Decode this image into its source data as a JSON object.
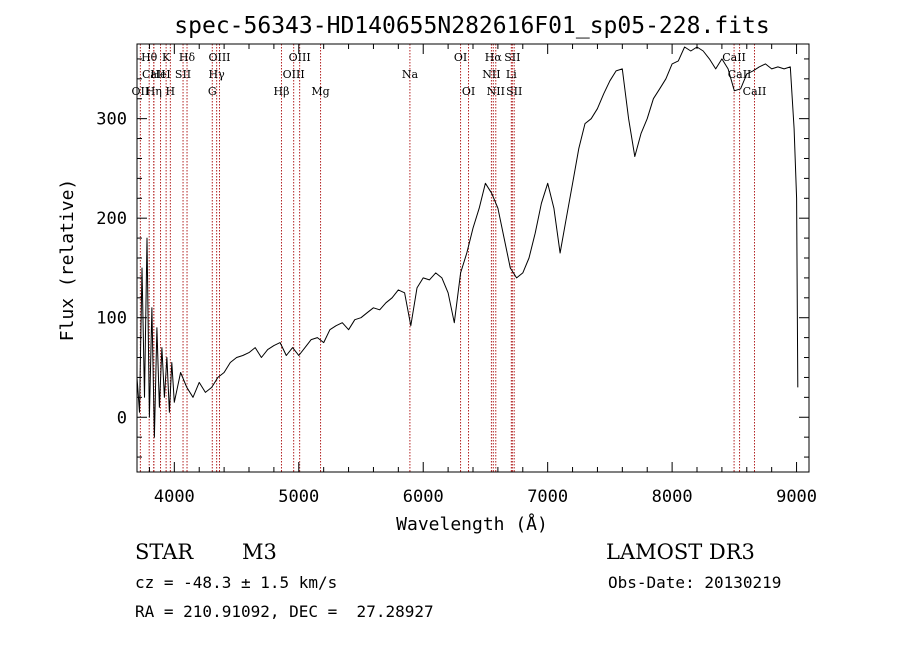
{
  "chart_data": {
    "type": "line",
    "title": "spec-56343-HD140655N282616F01_sp05-228.fits",
    "xlabel": "Wavelength (Å)",
    "ylabel": "Flux (relative)",
    "xlim": [
      3700,
      9100
    ],
    "ylim": [
      -55,
      375
    ],
    "x_ticks": [
      4000,
      5000,
      6000,
      7000,
      8000,
      9000
    ],
    "y_ticks": [
      0,
      100,
      200,
      300
    ],
    "x_minor_step": 200,
    "y_minor_step": 20,
    "grid": false,
    "series": [
      {
        "name": "flux",
        "x": [
          3700,
          3720,
          3740,
          3760,
          3780,
          3800,
          3820,
          3840,
          3860,
          3880,
          3900,
          3920,
          3940,
          3960,
          3980,
          4000,
          4050,
          4100,
          4150,
          4200,
          4250,
          4300,
          4350,
          4400,
          4450,
          4500,
          4550,
          4600,
          4650,
          4700,
          4750,
          4800,
          4850,
          4900,
          4950,
          5000,
          5050,
          5100,
          5150,
          5200,
          5250,
          5300,
          5350,
          5400,
          5450,
          5500,
          5550,
          5600,
          5650,
          5700,
          5750,
          5800,
          5850,
          5900,
          5950,
          6000,
          6050,
          6100,
          6150,
          6200,
          6250,
          6300,
          6350,
          6400,
          6450,
          6500,
          6550,
          6600,
          6650,
          6700,
          6750,
          6800,
          6850,
          6900,
          6950,
          7000,
          7050,
          7100,
          7150,
          7200,
          7250,
          7300,
          7350,
          7400,
          7450,
          7500,
          7550,
          7600,
          7650,
          7700,
          7750,
          7800,
          7850,
          7900,
          7950,
          8000,
          8050,
          8100,
          8150,
          8200,
          8250,
          8300,
          8350,
          8400,
          8450,
          8500,
          8550,
          8600,
          8650,
          8700,
          8750,
          8800,
          8850,
          8900,
          8950,
          8980,
          9000,
          9010
        ],
        "y": [
          40,
          5,
          150,
          20,
          180,
          0,
          110,
          -20,
          90,
          10,
          70,
          20,
          60,
          5,
          55,
          15,
          45,
          30,
          20,
          35,
          25,
          30,
          40,
          45,
          55,
          60,
          62,
          65,
          70,
          60,
          68,
          72,
          75,
          62,
          70,
          62,
          70,
          78,
          80,
          75,
          88,
          92,
          95,
          88,
          98,
          100,
          105,
          110,
          108,
          115,
          120,
          128,
          125,
          92,
          130,
          140,
          138,
          145,
          140,
          125,
          95,
          145,
          165,
          190,
          210,
          235,
          225,
          210,
          180,
          150,
          140,
          145,
          160,
          185,
          215,
          235,
          210,
          165,
          200,
          235,
          270,
          295,
          300,
          310,
          325,
          338,
          348,
          350,
          300,
          262,
          285,
          300,
          320,
          330,
          340,
          355,
          358,
          372,
          368,
          372,
          368,
          360,
          350,
          360,
          350,
          328,
          330,
          345,
          348,
          352,
          355,
          350,
          352,
          350,
          352,
          290,
          220,
          30
        ]
      }
    ],
    "line_markers": [
      {
        "label": "Hθ",
        "wavelength": 3798,
        "tier": 1
      },
      {
        "label": "CaII",
        "wavelength": 3835,
        "tier": 2
      },
      {
        "label": "OII",
        "wavelength": 3727,
        "tier": 3
      },
      {
        "label": "K",
        "wavelength": 3934,
        "tier": 1
      },
      {
        "label": "HeI",
        "wavelength": 3889,
        "tier": 2
      },
      {
        "label": "Hη",
        "wavelength": 3835,
        "tier": 3
      },
      {
        "label": "H",
        "wavelength": 3968,
        "tier": 3
      },
      {
        "label": "SII",
        "wavelength": 4070,
        "tier": 2
      },
      {
        "label": "Hδ",
        "wavelength": 4102,
        "tier": 1
      },
      {
        "label": "OIII",
        "wavelength": 4363,
        "tier": 1
      },
      {
        "label": "Hγ",
        "wavelength": 4340,
        "tier": 2
      },
      {
        "label": "G",
        "wavelength": 4305,
        "tier": 3
      },
      {
        "label": "OIII",
        "wavelength": 5007,
        "tier": 1
      },
      {
        "label": "OIII",
        "wavelength": 4959,
        "tier": 2
      },
      {
        "label": "Hβ",
        "wavelength": 4861,
        "tier": 3
      },
      {
        "label": "Mg",
        "wavelength": 5175,
        "tier": 3
      },
      {
        "label": "Na",
        "wavelength": 5893,
        "tier": 2
      },
      {
        "label": "OI",
        "wavelength": 6300,
        "tier": 1
      },
      {
        "label": "OI",
        "wavelength": 6364,
        "tier": 3
      },
      {
        "label": "Hα",
        "wavelength": 6563,
        "tier": 1
      },
      {
        "label": "SII",
        "wavelength": 6716,
        "tier": 1
      },
      {
        "label": "NII",
        "wavelength": 6548,
        "tier": 2
      },
      {
        "label": "Li",
        "wavelength": 6708,
        "tier": 2
      },
      {
        "label": "NII",
        "wavelength": 6583,
        "tier": 3
      },
      {
        "label": "SII",
        "wavelength": 6731,
        "tier": 3
      },
      {
        "label": "CaII",
        "wavelength": 8498,
        "tier": 1
      },
      {
        "label": "CaII",
        "wavelength": 8542,
        "tier": 2
      },
      {
        "label": "CaII",
        "wavelength": 8662,
        "tier": 3
      }
    ]
  },
  "info": {
    "object_class": "STAR",
    "subclass": "M3",
    "survey": "LAMOST DR3",
    "cz": "cz = -48.3 ± 1.5 km/s",
    "obs_date": "Obs-Date: 20130219",
    "coords": "RA = 210.91092, DEC =  27.28927"
  },
  "colors": {
    "axis": "#000000",
    "spectrum": "#000000",
    "marker_line": "#b22222",
    "background": "#ffffff"
  }
}
